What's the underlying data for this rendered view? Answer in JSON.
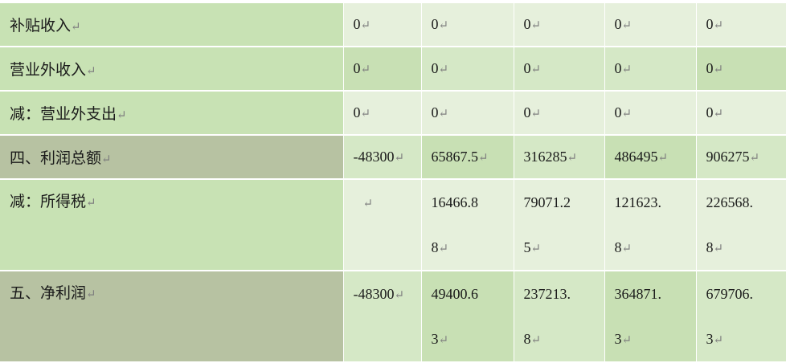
{
  "rows": [
    {
      "label": "补贴收入",
      "values": [
        "0",
        "0",
        "0",
        "0",
        "0"
      ]
    },
    {
      "label": "营业外收入",
      "values": [
        "0",
        "0",
        "0",
        "0",
        "0"
      ]
    },
    {
      "label": "减：营业外支出",
      "values": [
        "0",
        "0",
        "0",
        "0",
        "0"
      ]
    },
    {
      "label": "四、利润总额",
      "values": [
        "-48300",
        "65867.5",
        "316285",
        "486495",
        "906275"
      ]
    },
    {
      "label": "减：所得税",
      "values": [
        "",
        "16466.8",
        "79071.2",
        "121623.",
        "226568."
      ],
      "values_line2": [
        "",
        "8",
        "5",
        "8",
        "8"
      ]
    },
    {
      "label": "五、净利润",
      "values": [
        "-48300",
        "49400.6",
        "237213.",
        "364871.",
        "679706."
      ],
      "values_line2": [
        "",
        "3",
        "8",
        "3",
        "3"
      ]
    }
  ],
  "return_mark": "↵",
  "colors": {
    "label_green": "#c8e2b4",
    "label_olive": "#b7c2a2",
    "value_light": "#e6f0dc",
    "value_medium": "#d5e8c6"
  }
}
